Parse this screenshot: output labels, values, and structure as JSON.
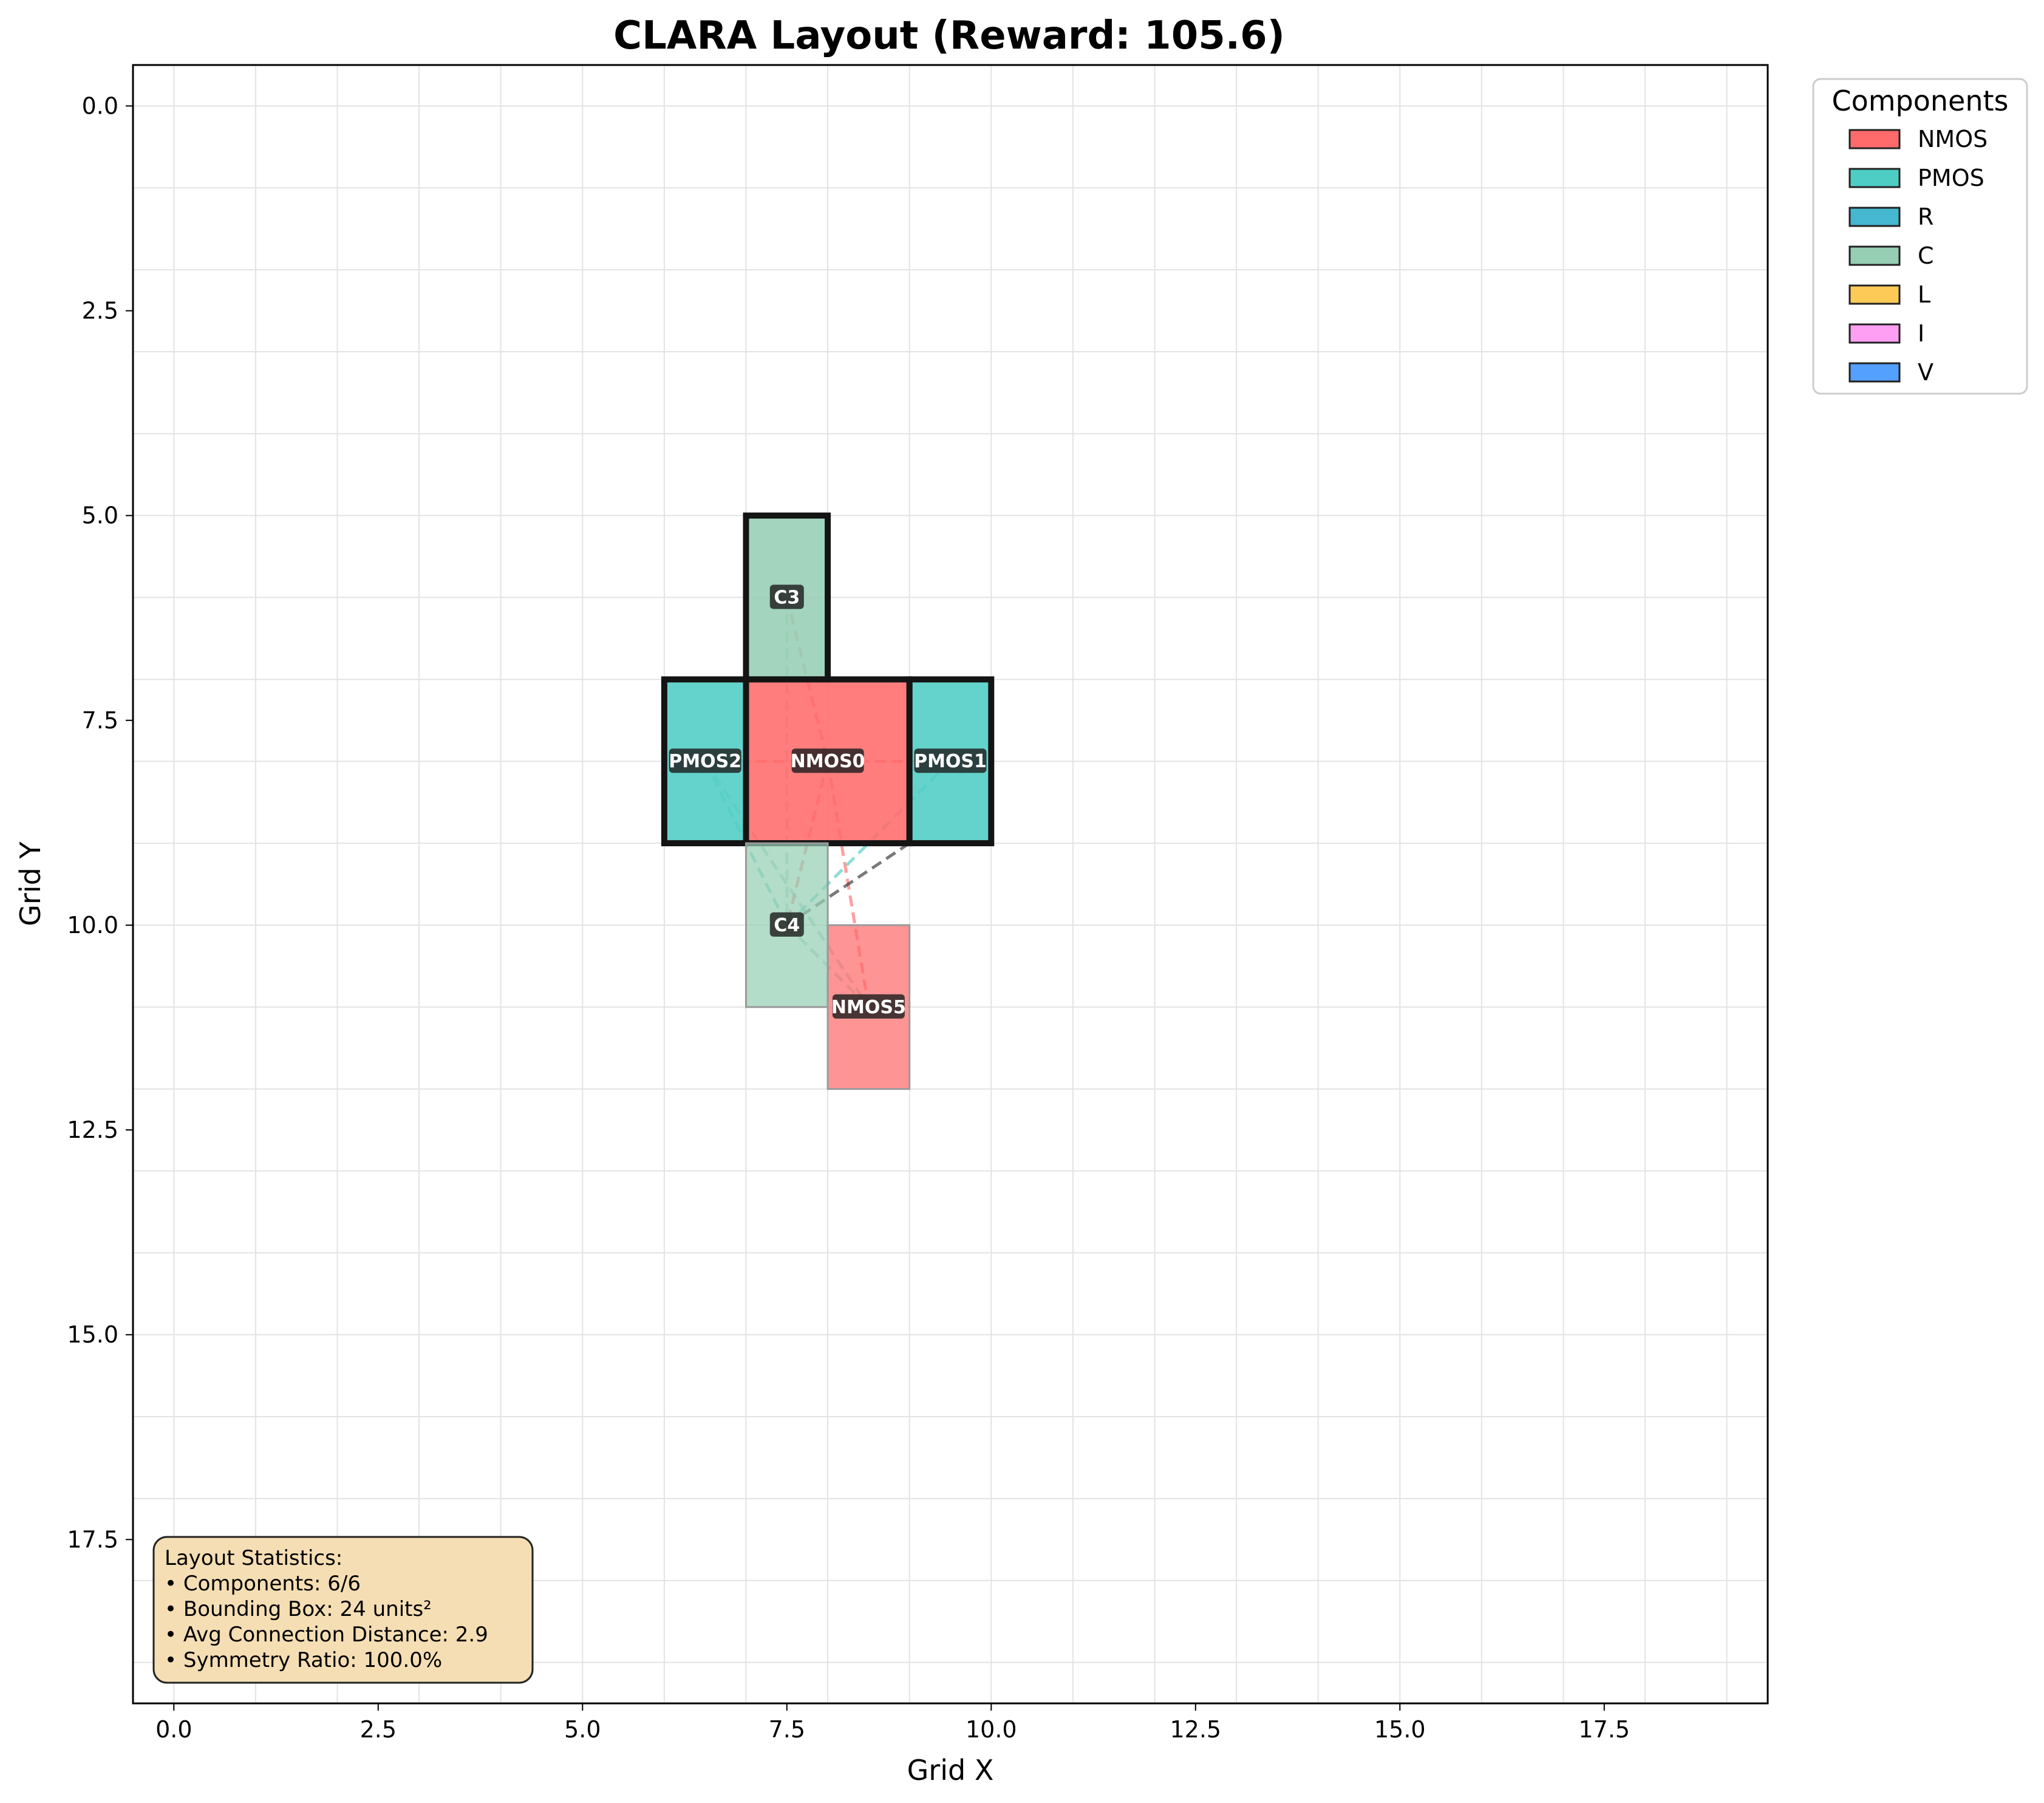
{
  "chart_data": {
    "type": "layout",
    "title": "CLARA Layout (Reward: 105.6)",
    "xlabel": "Grid X",
    "ylabel": "Grid Y",
    "xlim": [
      -0.5,
      19.5
    ],
    "ylim": [
      19.5,
      -0.5
    ],
    "y_inverted": true,
    "grid": true,
    "grid_step": 1,
    "xticks": [
      0.0,
      2.5,
      5.0,
      7.5,
      10.0,
      12.5,
      15.0,
      17.5
    ],
    "yticks": [
      0.0,
      2.5,
      5.0,
      7.5,
      10.0,
      12.5,
      15.0,
      17.5
    ],
    "legend": {
      "title": "Components",
      "placement": "outside-top-right",
      "entries": [
        {
          "label": "NMOS",
          "color": "#ff6b6b"
        },
        {
          "label": "PMOS",
          "color": "#4ecdc4"
        },
        {
          "label": "R",
          "color": "#45b7d1"
        },
        {
          "label": "C",
          "color": "#96ceb4"
        },
        {
          "label": "L",
          "color": "#feca57"
        },
        {
          "label": "I",
          "color": "#ff9ff3"
        },
        {
          "label": "V",
          "color": "#54a0ff"
        }
      ]
    },
    "components": [
      {
        "name": "C3",
        "type": "C",
        "x": 7,
        "y": 5,
        "w": 1,
        "h": 2,
        "highlighted": true
      },
      {
        "name": "PMOS2",
        "type": "PMOS",
        "x": 6,
        "y": 7,
        "w": 1,
        "h": 2,
        "highlighted": true
      },
      {
        "name": "NMOS0",
        "type": "NMOS",
        "x": 7,
        "y": 7,
        "w": 2,
        "h": 2,
        "highlighted": true
      },
      {
        "name": "PMOS1",
        "type": "PMOS",
        "x": 9,
        "y": 7,
        "w": 1,
        "h": 2,
        "highlighted": true
      },
      {
        "name": "C4",
        "type": "C",
        "x": 7,
        "y": 9,
        "w": 1,
        "h": 2,
        "highlighted": false
      },
      {
        "name": "NMOS5",
        "type": "NMOS",
        "x": 8,
        "y": 10,
        "w": 1,
        "h": 2,
        "highlighted": false
      }
    ],
    "connections": [
      {
        "x1": 7.5,
        "y1": 6,
        "x2": 8,
        "y2": 8,
        "color": "#ff6b6b"
      },
      {
        "x1": 7.5,
        "y1": 6,
        "x2": 7.5,
        "y2": 10,
        "color": "#96ceb4"
      },
      {
        "x1": 6.5,
        "y1": 8,
        "x2": 9.5,
        "y2": 8,
        "color": "#ff6b6b"
      },
      {
        "x1": 6.5,
        "y1": 8,
        "x2": 7.5,
        "y2": 10,
        "color": "#4ecdc4"
      },
      {
        "x1": 6.5,
        "y1": 8,
        "x2": 8.5,
        "y2": 11,
        "color": "#96ceb4"
      },
      {
        "x1": 8,
        "y1": 8,
        "x2": 7.5,
        "y2": 10,
        "color": "#ff6b6b"
      },
      {
        "x1": 8,
        "y1": 8,
        "x2": 8.5,
        "y2": 11,
        "color": "#ff6b6b"
      },
      {
        "x1": 9.5,
        "y1": 8,
        "x2": 7.5,
        "y2": 10,
        "color": "#4ecdc4"
      },
      {
        "x1": 9,
        "y1": 9,
        "x2": 7.5,
        "y2": 10,
        "color": "#333333"
      },
      {
        "x1": 7.5,
        "y1": 10,
        "x2": 8.5,
        "y2": 11,
        "color": "#96ceb4"
      }
    ],
    "stats": {
      "title": "Layout Statistics:",
      "lines": [
        "• Components: 6/6",
        "• Bounding Box: 24 units²",
        "• Avg Connection Distance: 2.9",
        "• Symmetry Ratio: 100.0%"
      ]
    }
  }
}
